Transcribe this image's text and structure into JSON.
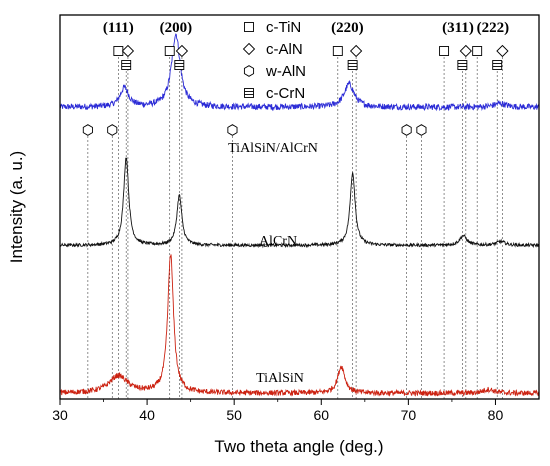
{
  "chart_data": {
    "type": "line",
    "xlabel": "Two theta angle (deg.)",
    "ylabel": "Intensity (a. u.)",
    "xlim": [
      30,
      85
    ],
    "xticks": [
      30,
      40,
      50,
      60,
      70,
      80
    ],
    "ylim": [
      0,
      100
    ],
    "grid": false,
    "legend_position": "top-center",
    "legend": [
      {
        "label": "c-TiN",
        "marker": "square"
      },
      {
        "label": "c-AlN",
        "marker": "diamond"
      },
      {
        "label": "w-AlN",
        "marker": "hexagon"
      },
      {
        "label": "c-CrN",
        "marker": "square-lined"
      }
    ],
    "hkl_labels": [
      {
        "text": "(111)",
        "x": 36.7
      },
      {
        "text": "(200)",
        "x": 43.3
      },
      {
        "text": "(220)",
        "x": 63.0
      },
      {
        "text": "(311)",
        "x": 75.7
      },
      {
        "text": "(222)",
        "x": 79.7
      }
    ],
    "reference_lines": [
      {
        "x": 36.7,
        "phase": "c-TiN"
      },
      {
        "x": 37.8,
        "phase": "c-AlN"
      },
      {
        "x": 37.6,
        "phase": "c-CrN"
      },
      {
        "x": 42.6,
        "phase": "c-TiN"
      },
      {
        "x": 44.0,
        "phase": "c-AlN"
      },
      {
        "x": 43.7,
        "phase": "c-CrN"
      },
      {
        "x": 61.9,
        "phase": "c-TiN"
      },
      {
        "x": 64.0,
        "phase": "c-AlN"
      },
      {
        "x": 63.6,
        "phase": "c-CrN"
      },
      {
        "x": 74.1,
        "phase": "c-TiN"
      },
      {
        "x": 76.6,
        "phase": "c-AlN"
      },
      {
        "x": 76.2,
        "phase": "c-CrN"
      },
      {
        "x": 77.9,
        "phase": "c-TiN"
      },
      {
        "x": 80.8,
        "phase": "c-AlN"
      },
      {
        "x": 80.2,
        "phase": "c-CrN"
      },
      {
        "x": 33.2,
        "phase": "w-AlN"
      },
      {
        "x": 36.0,
        "phase": "w-AlN"
      },
      {
        "x": 49.8,
        "phase": "w-AlN"
      },
      {
        "x": 69.8,
        "phase": "w-AlN"
      },
      {
        "x": 71.5,
        "phase": "w-AlN"
      }
    ],
    "series": [
      {
        "name": "TiAlSiN/AlCrN",
        "color": "#2b2bd6",
        "baseline": 76,
        "noise": 0.8,
        "peaks": [
          {
            "x": 37.4,
            "h": 5,
            "w": 0.6
          },
          {
            "x": 43.3,
            "h": 19,
            "w": 0.6
          },
          {
            "x": 63.2,
            "h": 6,
            "w": 0.7
          },
          {
            "x": 80.5,
            "h": 1,
            "w": 0.8
          }
        ]
      },
      {
        "name": "AlCrN",
        "color": "#111111",
        "baseline": 40,
        "noise": 0.4,
        "peaks": [
          {
            "x": 37.6,
            "h": 23,
            "w": 0.35
          },
          {
            "x": 43.7,
            "h": 13,
            "w": 0.35
          },
          {
            "x": 63.6,
            "h": 19,
            "w": 0.35
          },
          {
            "x": 76.3,
            "h": 2.5,
            "w": 0.5
          },
          {
            "x": 80.6,
            "h": 1,
            "w": 0.6
          }
        ]
      },
      {
        "name": "TiAlSiN",
        "color": "#cc2211",
        "baseline": 1.5,
        "noise": 0.7,
        "peaks": [
          {
            "x": 36.7,
            "h": 4.5,
            "w": 1.3
          },
          {
            "x": 42.7,
            "h": 36,
            "w": 0.4
          },
          {
            "x": 62.3,
            "h": 7,
            "w": 0.5
          },
          {
            "x": 79.2,
            "h": 1,
            "w": 0.8
          }
        ]
      }
    ]
  }
}
